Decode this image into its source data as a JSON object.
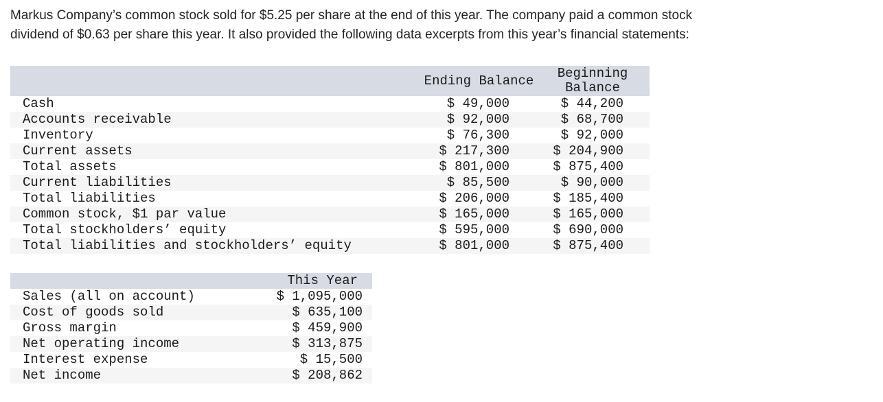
{
  "intro": {
    "line1": "Markus Company’s common stock sold for $5.25 per share at the end of this year. The company paid a common stock",
    "line2": "dividend of $0.63 per share this year. It also provided the following data excerpts from this year’s financial statements:"
  },
  "balance_table": {
    "columns": {
      "ending": "Ending Balance",
      "beginning_line1": "Beginning",
      "beginning_line2": "Balance"
    },
    "rows": [
      {
        "label": "Cash",
        "ending": "$ 49,000",
        "beginning": "$ 44,200"
      },
      {
        "label": "Accounts receivable",
        "ending": "$ 92,000",
        "beginning": "$ 68,700"
      },
      {
        "label": "Inventory",
        "ending": "$ 76,300",
        "beginning": "$ 92,000"
      },
      {
        "label": "Current assets",
        "ending": "$ 217,300",
        "beginning": "$ 204,900"
      },
      {
        "label": "Total assets",
        "ending": "$ 801,000",
        "beginning": "$ 875,400"
      },
      {
        "label": "Current liabilities",
        "ending": "$ 85,500",
        "beginning": "$ 90,000"
      },
      {
        "label": "Total liabilities",
        "ending": "$ 206,000",
        "beginning": "$ 185,400"
      },
      {
        "label": "Common stock, $1 par value",
        "ending": "$ 165,000",
        "beginning": "$ 165,000"
      },
      {
        "label": "Total stockholders’ equity",
        "ending": "$ 595,000",
        "beginning": "$ 690,000"
      },
      {
        "label": "Total liabilities and stockholders’ equity",
        "ending": "$ 801,000",
        "beginning": "$ 875,400"
      }
    ]
  },
  "income_table": {
    "column": "This Year",
    "rows": [
      {
        "label": "Sales (all on account)",
        "value": "$ 1,095,000"
      },
      {
        "label": "Cost of goods sold",
        "value": "$ 635,100"
      },
      {
        "label": "Gross margin",
        "value": "$ 459,900"
      },
      {
        "label": "Net operating income",
        "value": "$ 313,875"
      },
      {
        "label": "Interest expense",
        "value": "$ 15,500"
      },
      {
        "label": "Net income",
        "value": "$ 208,862"
      }
    ]
  },
  "colors": {
    "header_bg": "#d7dbe3",
    "stripe_bg": "#f5f5f6",
    "table_text": "#1b1b1b",
    "intro_text": "#212428"
  }
}
